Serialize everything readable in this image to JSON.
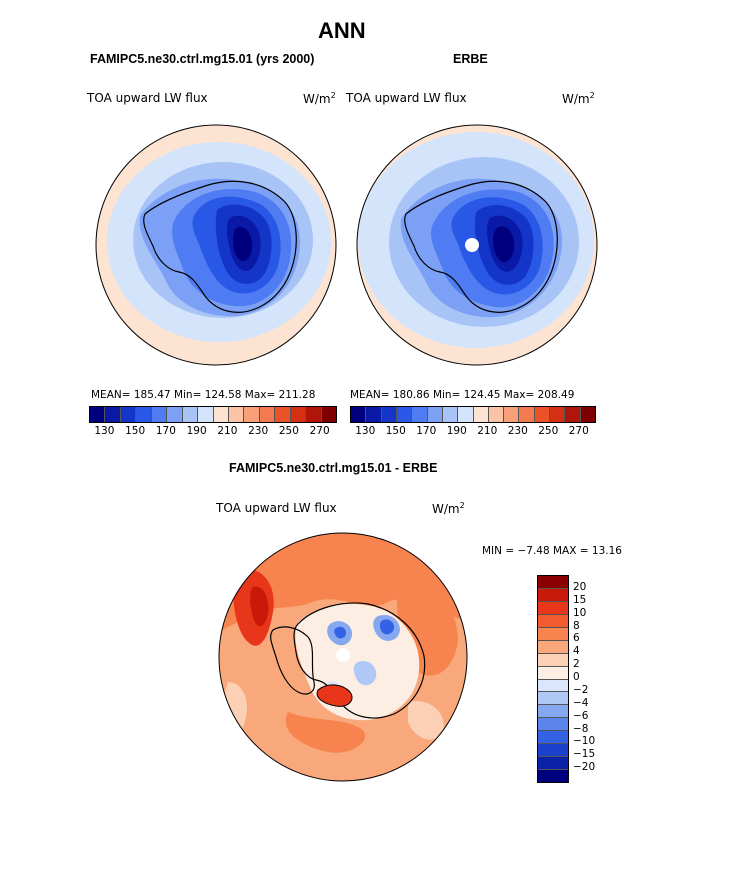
{
  "title": "ANN",
  "panels": {
    "model": {
      "subtitle": "FAMIPC5.ne30.ctrl.mg15.01 (yrs 2000)",
      "variable": "TOA upward LW flux",
      "units_base": "W/m",
      "units_exp": "2",
      "stats": "MEAN= 185.47  Min= 124.58  Max= 211.28",
      "colorbar": {
        "colors": [
          "#00007f",
          "#0a1aa6",
          "#1436c8",
          "#2a58e6",
          "#4f7cf2",
          "#7ba0f5",
          "#a8c4f7",
          "#d4e4fb",
          "#fde3d2",
          "#fbc4a6",
          "#f8a07a",
          "#f47a4f",
          "#ec5228",
          "#d63014",
          "#b0150a",
          "#7f0000"
        ],
        "ticks": [
          "130",
          "150",
          "170",
          "190",
          "210",
          "230",
          "250",
          "270"
        ]
      }
    },
    "obs": {
      "subtitle": "ERBE",
      "variable": "TOA upward LW flux",
      "units_base": "W/m",
      "units_exp": "2",
      "stats": "MEAN= 180.86  Min= 124.45  Max= 208.49",
      "colorbar": {
        "colors": [
          "#00007f",
          "#0a1aa6",
          "#1436c8",
          "#2a58e6",
          "#4f7cf2",
          "#7ba0f5",
          "#a8c4f7",
          "#d4e4fb",
          "#fde3d2",
          "#fbc4a6",
          "#f8a07a",
          "#f47a4f",
          "#ec5228",
          "#d63014",
          "#b0150a",
          "#7f0000"
        ],
        "ticks": [
          "130",
          "150",
          "170",
          "190",
          "210",
          "230",
          "250",
          "270"
        ]
      }
    },
    "diff": {
      "subtitle": "FAMIPC5.ne30.ctrl.mg15.01 - ERBE",
      "variable": "TOA upward LW flux",
      "units_base": "W/m",
      "units_exp": "2",
      "stats": "MIN =  −7.48 MAX =  13.16",
      "colorbar": {
        "colors": [
          "#8b0000",
          "#c8190a",
          "#e8361a",
          "#f25a30",
          "#f7844f",
          "#f9a87c",
          "#fcd0b4",
          "#fdeee4",
          "#d9e6fb",
          "#b0c8f6",
          "#86a8f1",
          "#5b84ec",
          "#3462e4",
          "#1a40cc",
          "#0a22a8",
          "#00007f"
        ],
        "ticks": [
          "20",
          "15",
          "10",
          "8",
          "6",
          "4",
          "2",
          "0",
          "−2",
          "−4",
          "−6",
          "−8",
          "−10",
          "−15",
          "−20"
        ]
      }
    }
  }
}
